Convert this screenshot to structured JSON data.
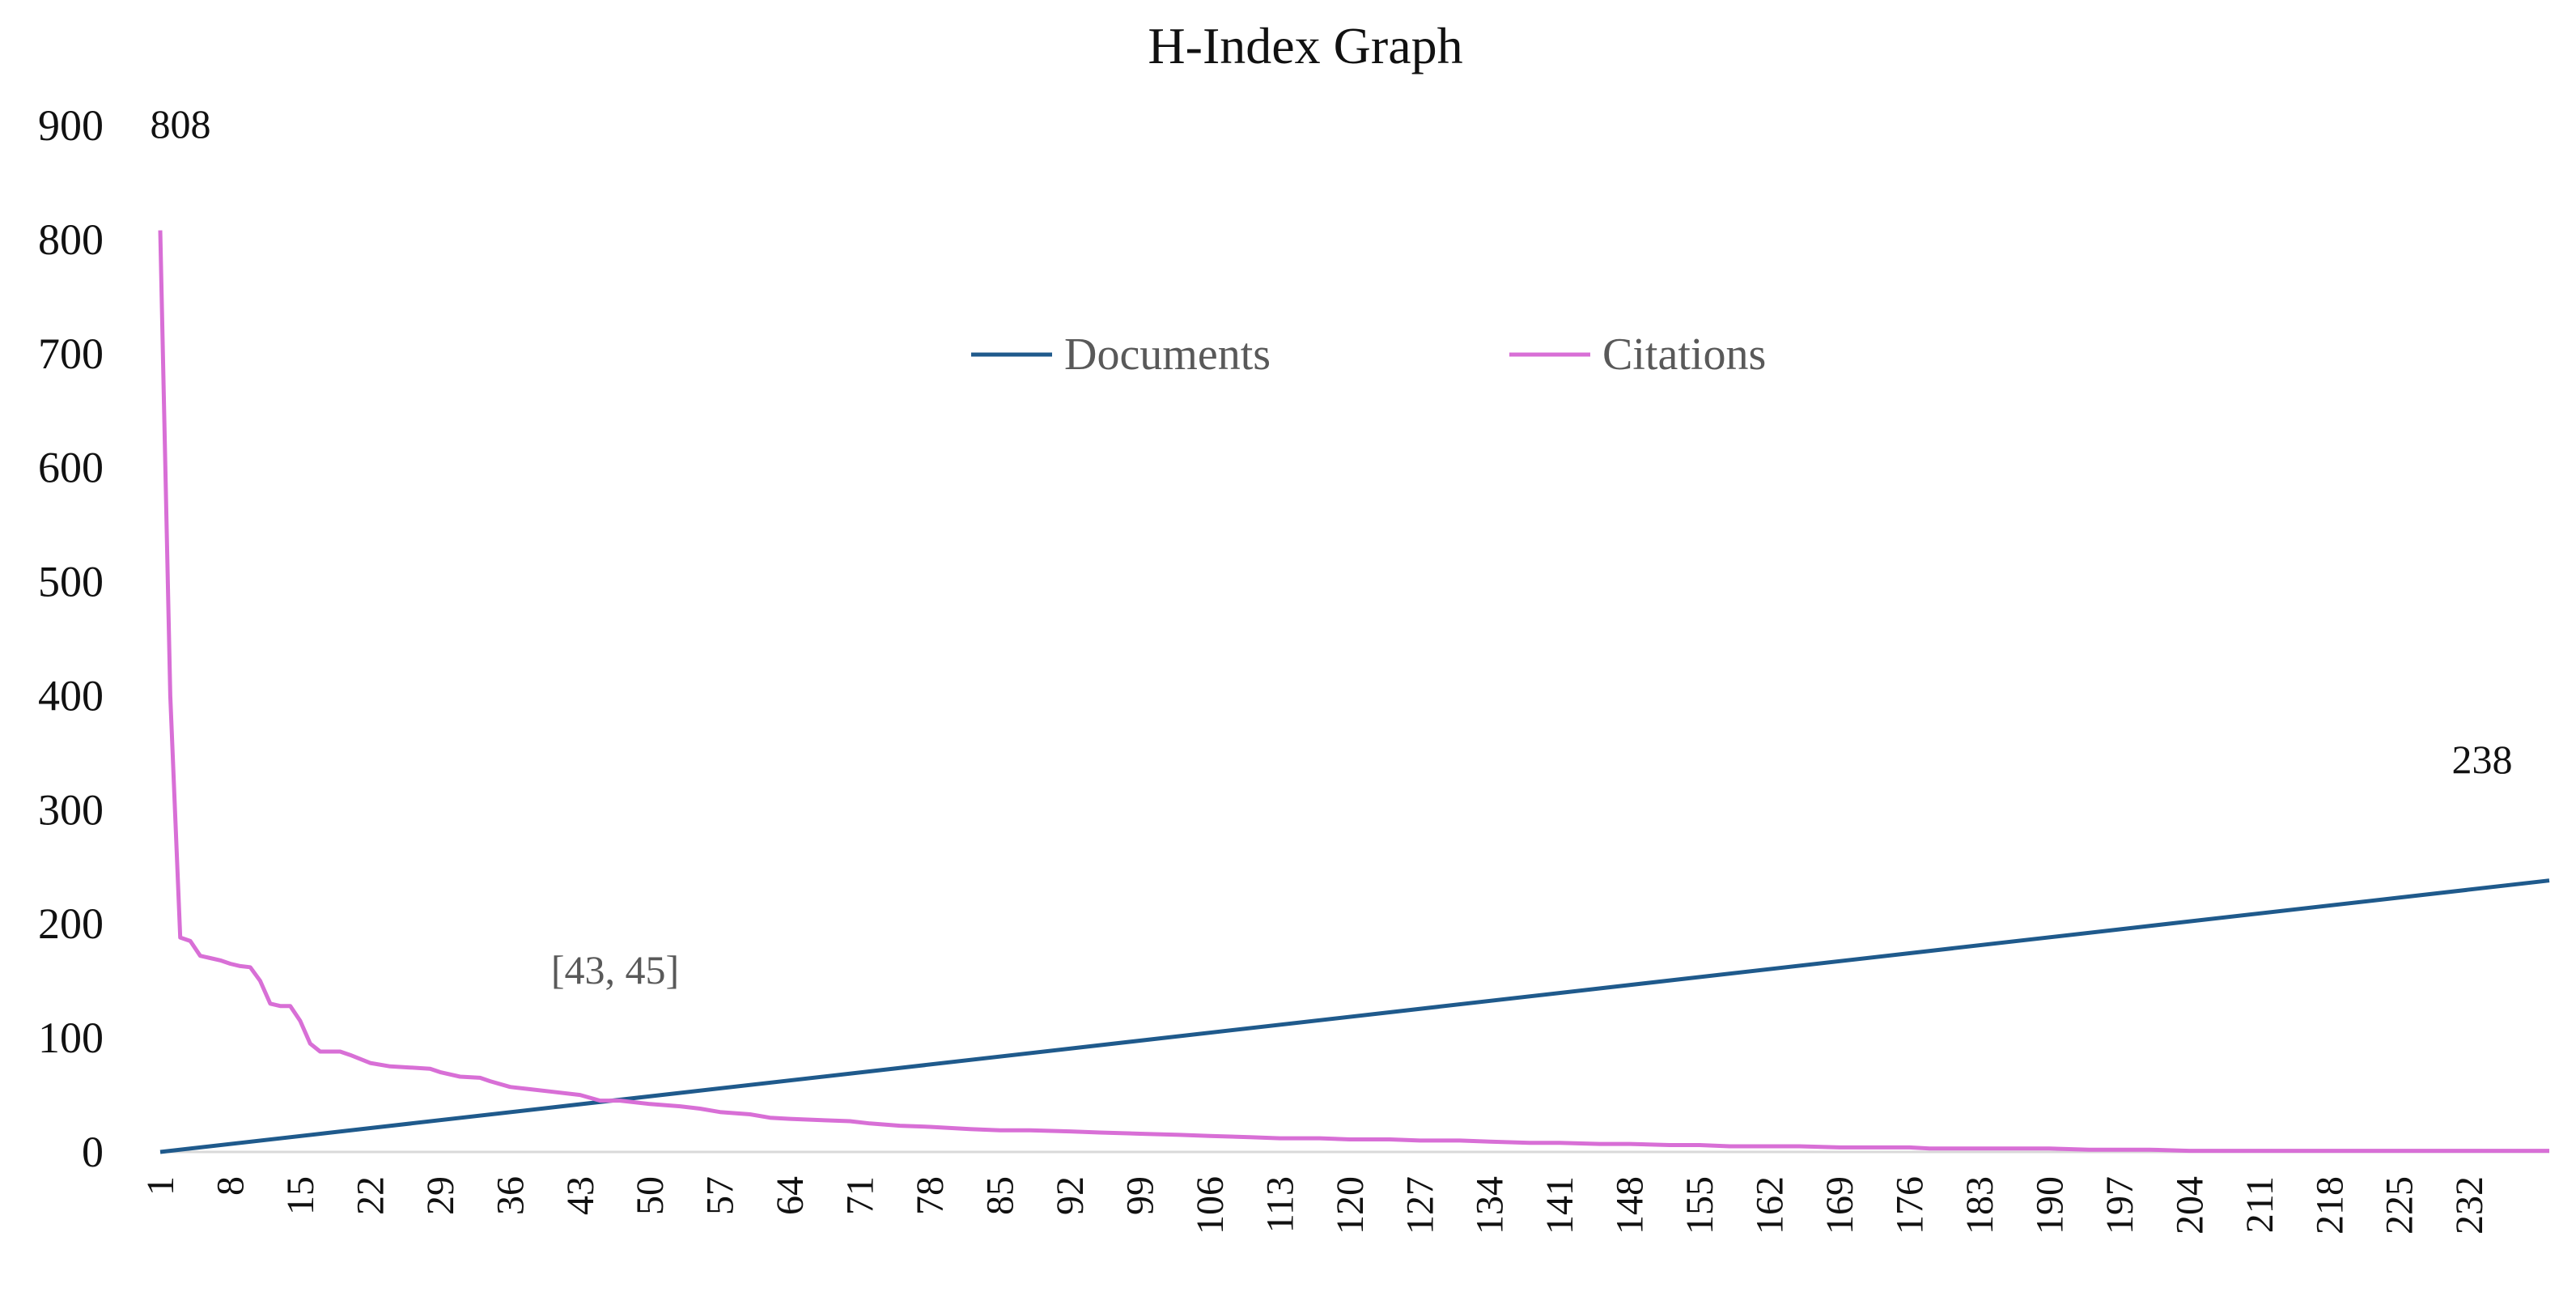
{
  "chart_data": {
    "type": "line",
    "title": "H-Index Graph",
    "xlabel": "",
    "ylabel": "",
    "ylim": [
      0,
      900
    ],
    "yticks": [
      0,
      100,
      200,
      300,
      400,
      500,
      600,
      700,
      800,
      900
    ],
    "xlim": [
      1,
      240
    ],
    "xtick_step": 7,
    "legend_position": "top-center",
    "grid": false,
    "series": [
      {
        "name": "Documents",
        "color": "#1f5a8c",
        "x": [
          1,
          240
        ],
        "values": [
          0,
          238
        ]
      },
      {
        "name": "Citations",
        "color": "#d86fd6",
        "x": [
          1,
          2,
          3,
          4,
          5,
          6,
          7,
          8,
          9,
          10,
          11,
          12,
          13,
          14,
          15,
          16,
          17,
          18,
          19,
          20,
          22,
          24,
          26,
          28,
          29,
          31,
          33,
          34,
          36,
          38,
          40,
          43,
          45,
          47,
          50,
          53,
          55,
          57,
          60,
          62,
          64,
          67,
          70,
          72,
          75,
          78,
          80,
          82,
          85,
          88,
          92,
          95,
          99,
          103,
          106,
          110,
          113,
          117,
          120,
          124,
          127,
          131,
          134,
          138,
          141,
          145,
          148,
          152,
          155,
          158,
          162,
          165,
          169,
          172,
          176,
          178,
          183,
          187,
          190,
          194,
          197,
          200,
          204,
          211,
          218,
          225,
          232,
          240
        ],
        "values": [
          808,
          400,
          188,
          185,
          172,
          170,
          168,
          165,
          163,
          162,
          150,
          130,
          128,
          128,
          115,
          95,
          88,
          88,
          88,
          85,
          78,
          75,
          74,
          73,
          70,
          66,
          65,
          62,
          57,
          55,
          53,
          50,
          45,
          45,
          42,
          40,
          38,
          35,
          33,
          30,
          29,
          28,
          27,
          25,
          23,
          22,
          21,
          20,
          19,
          19,
          18,
          17,
          16,
          15,
          14,
          13,
          12,
          12,
          11,
          11,
          10,
          10,
          9,
          8,
          8,
          7,
          7,
          6,
          6,
          5,
          5,
          5,
          4,
          4,
          4,
          3,
          3,
          3,
          3,
          2,
          2,
          2,
          1,
          1,
          1,
          1,
          1,
          1
        ]
      }
    ],
    "annotations": [
      {
        "text": "808",
        "x": 1,
        "y": 808,
        "series": "Citations"
      },
      {
        "text": "238",
        "x": 240,
        "y": 238,
        "series": "Documents"
      },
      {
        "text": "[43, 45]",
        "x": 43,
        "y": 45,
        "series": "intersection"
      }
    ]
  }
}
